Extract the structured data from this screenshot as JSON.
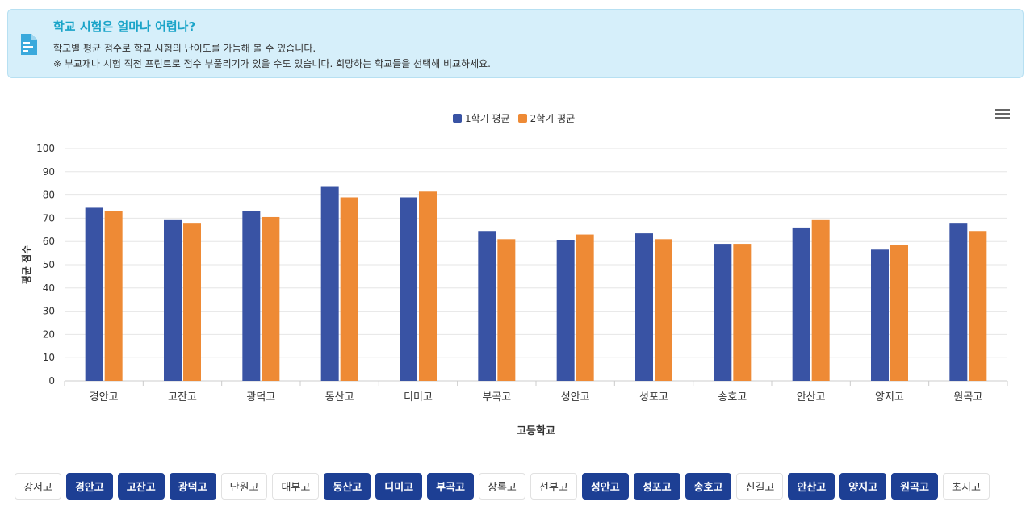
{
  "info": {
    "title": "학교 시험은 얼마나 어렵나?",
    "line1": "학교별 평균 점수로 학교 시험의 난이도를 가늠해 볼 수 있습니다.",
    "line2": "※ 부교재나 시험 직전 프린트로 점수 부풀리기가 있을 수도 있습니다. 희망하는 학교들을 선택해 비교하세요.",
    "icon": "document-icon",
    "accent": "#1aa4c8"
  },
  "chart_data": {
    "type": "bar",
    "categories": [
      "경안고",
      "고잔고",
      "광덕고",
      "동산고",
      "디미고",
      "부곡고",
      "성안고",
      "성포고",
      "송호고",
      "안산고",
      "양지고",
      "원곡고"
    ],
    "series": [
      {
        "name": "1학기 평균",
        "color": "#3953a4",
        "values": [
          74.5,
          69.5,
          73,
          83.5,
          79,
          64.5,
          60.5,
          63.5,
          59,
          66,
          56.5,
          68
        ]
      },
      {
        "name": "2학기 평균",
        "color": "#ee8a35",
        "values": [
          73,
          68,
          70.5,
          79,
          81.5,
          61,
          63,
          61,
          59,
          69.5,
          58.5,
          64.5
        ]
      }
    ],
    "title": "",
    "xlabel": "고등학교",
    "ylabel": "평균 점수",
    "ylim": [
      0,
      100
    ],
    "yticks": [
      0,
      10,
      20,
      30,
      40,
      50,
      60,
      70,
      80,
      90,
      100
    ],
    "grid": true,
    "legend_position": "top-center"
  },
  "menu_icon": "hamburger-menu-icon",
  "schools": [
    {
      "label": "강서고",
      "selected": false
    },
    {
      "label": "경안고",
      "selected": true
    },
    {
      "label": "고잔고",
      "selected": true
    },
    {
      "label": "광덕고",
      "selected": true
    },
    {
      "label": "단원고",
      "selected": false
    },
    {
      "label": "대부고",
      "selected": false
    },
    {
      "label": "동산고",
      "selected": true
    },
    {
      "label": "디미고",
      "selected": true
    },
    {
      "label": "부곡고",
      "selected": true
    },
    {
      "label": "상록고",
      "selected": false
    },
    {
      "label": "선부고",
      "selected": false
    },
    {
      "label": "성안고",
      "selected": true
    },
    {
      "label": "성포고",
      "selected": true
    },
    {
      "label": "송호고",
      "selected": true
    },
    {
      "label": "신길고",
      "selected": false
    },
    {
      "label": "안산고",
      "selected": true
    },
    {
      "label": "양지고",
      "selected": true
    },
    {
      "label": "원곡고",
      "selected": true
    },
    {
      "label": "초지고",
      "selected": false
    }
  ]
}
